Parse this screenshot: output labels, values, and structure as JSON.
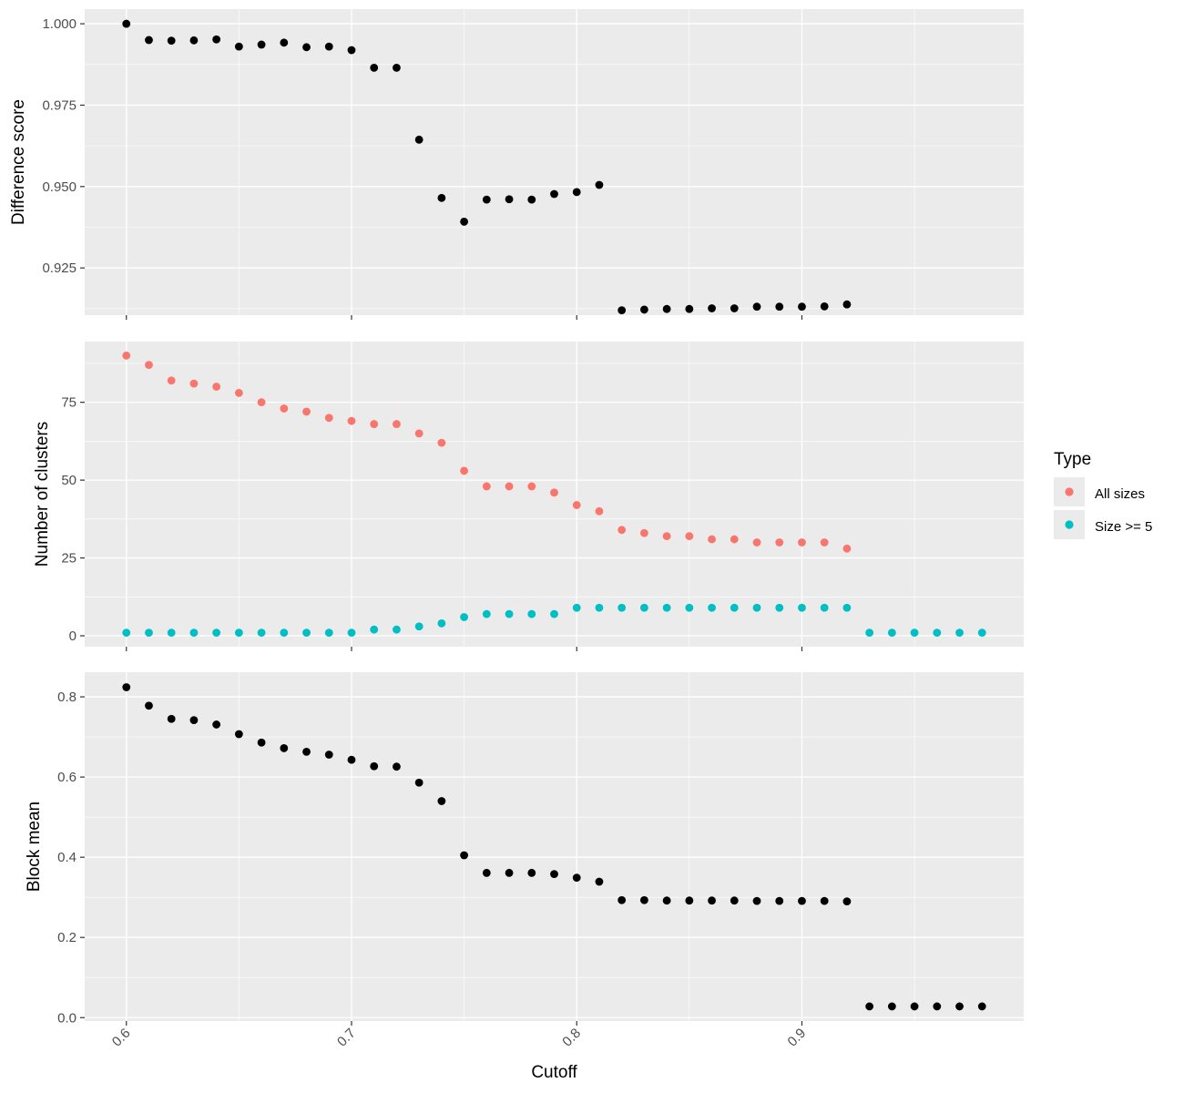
{
  "chart_data": [
    {
      "type": "scatter",
      "ylabel": "Difference score",
      "xlabel": "",
      "ylim": [
        0.9105,
        1.0045
      ],
      "xlim": [
        0.5815,
        0.9985
      ],
      "y_ticks": [
        "0.925",
        "0.950",
        "0.975",
        "1.000"
      ],
      "y_tick_values": [
        0.925,
        0.95,
        0.975,
        1.0
      ],
      "x_ticks": [
        "0.6",
        "0.7",
        "0.8",
        "0.9"
      ],
      "x_tick_values": [
        0.6,
        0.7,
        0.8,
        0.9
      ],
      "show_x_labels": false,
      "grid": true,
      "series": [
        {
          "color": "#000000",
          "x": [
            0.6,
            0.61,
            0.62,
            0.63,
            0.64,
            0.65,
            0.66,
            0.67,
            0.68,
            0.69,
            0.7,
            0.71,
            0.72,
            0.73,
            0.74,
            0.75,
            0.76,
            0.77,
            0.78,
            0.79,
            0.8,
            0.81,
            0.82,
            0.83,
            0.84,
            0.85,
            0.86,
            0.87,
            0.88,
            0.89,
            0.9,
            0.91,
            0.92
          ],
          "y": [
            1.0,
            0.995,
            0.9948,
            0.9949,
            0.9952,
            0.993,
            0.9936,
            0.9942,
            0.9928,
            0.993,
            0.9919,
            0.9865,
            0.9865,
            0.9644,
            0.9465,
            0.9392,
            0.946,
            0.9461,
            0.946,
            0.9477,
            0.9483,
            0.9505,
            0.912,
            0.9122,
            0.9124,
            0.9124,
            0.9126,
            0.9126,
            0.9131,
            0.9131,
            0.9131,
            0.9132,
            0.9138
          ]
        }
      ]
    },
    {
      "type": "scatter",
      "ylabel": "Number of clusters",
      "xlabel": "",
      "ylim": [
        -3.5,
        94.5
      ],
      "xlim": [
        0.5815,
        0.9985
      ],
      "y_ticks": [
        "0",
        "25",
        "50",
        "75"
      ],
      "y_tick_values": [
        0,
        25,
        50,
        75
      ],
      "x_ticks": [
        "0.6",
        "0.7",
        "0.8",
        "0.9"
      ],
      "x_tick_values": [
        0.6,
        0.7,
        0.8,
        0.9
      ],
      "show_x_labels": false,
      "grid": true,
      "series": [
        {
          "name": "All sizes",
          "color": "#f8766d",
          "x": [
            0.6,
            0.61,
            0.62,
            0.63,
            0.64,
            0.65,
            0.66,
            0.67,
            0.68,
            0.69,
            0.7,
            0.71,
            0.72,
            0.73,
            0.74,
            0.75,
            0.76,
            0.77,
            0.78,
            0.79,
            0.8,
            0.81,
            0.82,
            0.83,
            0.84,
            0.85,
            0.86,
            0.87,
            0.88,
            0.89,
            0.9,
            0.91,
            0.92
          ],
          "y": [
            90,
            87,
            82,
            81,
            80,
            78,
            75,
            73,
            72,
            70,
            69,
            68,
            68,
            65,
            62,
            53,
            48,
            48,
            48,
            46,
            42,
            40,
            34,
            33,
            32,
            32,
            31,
            31,
            30,
            30,
            30,
            30,
            28
          ]
        },
        {
          "name": "Size >= 5",
          "color": "#00bfc4",
          "x": [
            0.6,
            0.61,
            0.62,
            0.63,
            0.64,
            0.65,
            0.66,
            0.67,
            0.68,
            0.69,
            0.7,
            0.71,
            0.72,
            0.73,
            0.74,
            0.75,
            0.76,
            0.77,
            0.78,
            0.79,
            0.8,
            0.81,
            0.82,
            0.83,
            0.84,
            0.85,
            0.86,
            0.87,
            0.88,
            0.89,
            0.9,
            0.91,
            0.92,
            0.93,
            0.94,
            0.95,
            0.96,
            0.97,
            0.98
          ],
          "y": [
            1,
            1,
            1,
            1,
            1,
            1,
            1,
            1,
            1,
            1,
            1,
            2,
            2,
            3,
            4,
            6,
            7,
            7,
            7,
            7,
            9,
            9,
            9,
            9,
            9,
            9,
            9,
            9,
            9,
            9,
            9,
            9,
            9,
            1,
            1,
            1,
            1,
            1,
            1
          ]
        }
      ]
    },
    {
      "type": "scatter",
      "ylabel": "Block mean",
      "xlabel": "Cutoff",
      "ylim": [
        -0.0085,
        0.8615
      ],
      "xlim": [
        0.5815,
        0.9985
      ],
      "y_ticks": [
        "0.0",
        "0.2",
        "0.4",
        "0.6",
        "0.8"
      ],
      "y_tick_values": [
        0.0,
        0.2,
        0.4,
        0.6,
        0.8
      ],
      "x_ticks": [
        "0.6",
        "0.7",
        "0.8",
        "0.9"
      ],
      "x_tick_values": [
        0.6,
        0.7,
        0.8,
        0.9
      ],
      "show_x_labels": true,
      "grid": true,
      "series": [
        {
          "color": "#000000",
          "x": [
            0.6,
            0.61,
            0.62,
            0.63,
            0.64,
            0.65,
            0.66,
            0.67,
            0.68,
            0.69,
            0.7,
            0.71,
            0.72,
            0.73,
            0.74,
            0.75,
            0.76,
            0.77,
            0.78,
            0.79,
            0.8,
            0.81,
            0.82,
            0.83,
            0.84,
            0.85,
            0.86,
            0.87,
            0.88,
            0.89,
            0.9,
            0.91,
            0.92,
            0.93,
            0.94,
            0.95,
            0.96,
            0.97,
            0.98
          ],
          "y": [
            0.824,
            0.778,
            0.745,
            0.742,
            0.731,
            0.707,
            0.686,
            0.672,
            0.663,
            0.656,
            0.643,
            0.627,
            0.626,
            0.586,
            0.54,
            0.405,
            0.361,
            0.361,
            0.361,
            0.358,
            0.349,
            0.339,
            0.293,
            0.293,
            0.292,
            0.292,
            0.292,
            0.292,
            0.291,
            0.291,
            0.291,
            0.291,
            0.29,
            0.028,
            0.028,
            0.028,
            0.028,
            0.028,
            0.028
          ]
        }
      ]
    }
  ],
  "legend": {
    "title": "Type",
    "position": "right",
    "items": [
      {
        "label": "All sizes",
        "color": "#f8766d"
      },
      {
        "label": "Size >= 5",
        "color": "#00bfc4"
      }
    ]
  }
}
